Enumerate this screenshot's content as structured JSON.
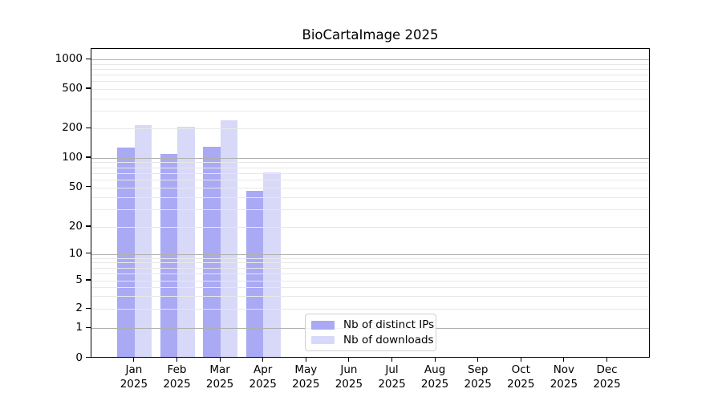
{
  "chart_data": {
    "type": "bar",
    "title": "BioCartaImage 2025",
    "year_label": "2025",
    "categories": [
      "Jan",
      "Feb",
      "Mar",
      "Apr",
      "May",
      "Jun",
      "Jul",
      "Aug",
      "Sep",
      "Oct",
      "Nov",
      "Dec"
    ],
    "series": [
      {
        "name": "Nb of distinct IPs",
        "color": "#a9a9f4",
        "values": [
          129,
          111,
          132,
          46,
          0,
          0,
          0,
          0,
          0,
          0,
          0,
          0
        ]
      },
      {
        "name": "Nb of downloads",
        "color": "#d8d8f8",
        "values": [
          218,
          211,
          242,
          71,
          0,
          0,
          0,
          0,
          0,
          0,
          0,
          0
        ]
      }
    ],
    "yscale": "symlog",
    "yticks": [
      0,
      1,
      2,
      5,
      10,
      20,
      50,
      100,
      200,
      500,
      1000
    ],
    "ylim": [
      0,
      1285
    ],
    "grid": "horizontal major + minor, drawn above bars",
    "grid_major_color": "#b0b0b0",
    "grid_minor_color": "#e8e8e8",
    "axis_color": "#000000",
    "legend_position": "lower center"
  }
}
